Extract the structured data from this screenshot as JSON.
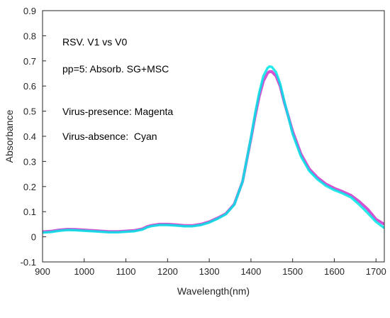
{
  "chart_data": {
    "type": "line",
    "title": "",
    "xlabel": "Wavelength(nm)",
    "ylabel": "Absorbance",
    "xlim": [
      900,
      1720
    ],
    "ylim": [
      -0.1,
      0.9
    ],
    "x_ticks": [
      "900",
      "1000",
      "1100",
      "1200",
      "1300",
      "1400",
      "1500",
      "1600",
      "1700"
    ],
    "y_ticks": [
      "-0.1",
      "0",
      "0.1",
      "0.2",
      "0.3",
      "0.4",
      "0.5",
      "0.6",
      "0.7",
      "0.8",
      "0.9"
    ],
    "annotations": [
      "RSV. V1 vs V0",
      "pp=5: Absorb. SG+MSC",
      "Virus-presence: Magenta",
      "Virus-absence:  Cyan"
    ],
    "grid": false,
    "legend": "none",
    "series": [
      {
        "color": "#cc33cc",
        "x": [
          900,
          920,
          940,
          960,
          980,
          1000,
          1020,
          1040,
          1060,
          1080,
          1100,
          1120,
          1140,
          1150,
          1160,
          1180,
          1200,
          1220,
          1240,
          1260,
          1280,
          1300,
          1320,
          1340,
          1360,
          1380,
          1400,
          1410,
          1420,
          1430,
          1440,
          1445,
          1450,
          1460,
          1470,
          1480,
          1500,
          1520,
          1540,
          1560,
          1580,
          1600,
          1620,
          1640,
          1660,
          1680,
          1700,
          1720
        ],
        "y": [
          0.02,
          0.022,
          0.027,
          0.03,
          0.029,
          0.027,
          0.025,
          0.023,
          0.021,
          0.021,
          0.023,
          0.025,
          0.032,
          0.04,
          0.045,
          0.05,
          0.05,
          0.048,
          0.045,
          0.045,
          0.05,
          0.06,
          0.075,
          0.092,
          0.13,
          0.22,
          0.39,
          0.48,
          0.56,
          0.62,
          0.652,
          0.658,
          0.657,
          0.64,
          0.6,
          0.535,
          0.42,
          0.33,
          0.27,
          0.235,
          0.21,
          0.193,
          0.18,
          0.165,
          0.14,
          0.11,
          0.07,
          0.05
        ]
      },
      {
        "color": "#00e5e5",
        "x": [
          900,
          920,
          940,
          960,
          980,
          1000,
          1020,
          1040,
          1060,
          1080,
          1100,
          1120,
          1140,
          1150,
          1160,
          1180,
          1200,
          1220,
          1240,
          1260,
          1280,
          1300,
          1320,
          1340,
          1360,
          1380,
          1400,
          1410,
          1420,
          1430,
          1440,
          1445,
          1450,
          1460,
          1470,
          1480,
          1500,
          1520,
          1540,
          1560,
          1580,
          1600,
          1620,
          1640,
          1660,
          1680,
          1700,
          1720
        ],
        "y": [
          0.017,
          0.019,
          0.024,
          0.027,
          0.026,
          0.024,
          0.022,
          0.02,
          0.018,
          0.018,
          0.02,
          0.022,
          0.029,
          0.037,
          0.042,
          0.047,
          0.047,
          0.045,
          0.042,
          0.042,
          0.047,
          0.057,
          0.072,
          0.09,
          0.128,
          0.22,
          0.395,
          0.49,
          0.575,
          0.64,
          0.672,
          0.678,
          0.676,
          0.655,
          0.61,
          0.54,
          0.41,
          0.32,
          0.262,
          0.228,
          0.203,
          0.186,
          0.173,
          0.157,
          0.128,
          0.095,
          0.06,
          0.035
        ]
      }
    ]
  }
}
